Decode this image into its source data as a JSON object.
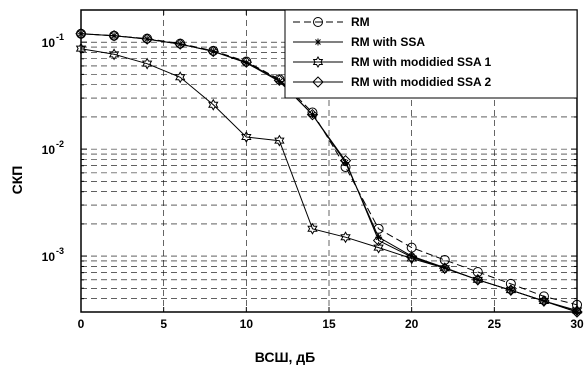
{
  "chart_data": {
    "type": "line",
    "xlabel": "ВСШ, дБ",
    "ylabel": "СКП",
    "xlim": [
      0,
      30
    ],
    "ylim": [
      0.0003,
      0.2
    ],
    "yscale": "log",
    "grid": true,
    "legend_position": "top-right",
    "x_ticks": [
      0,
      5,
      10,
      15,
      20,
      25,
      30
    ],
    "y_ticks": [
      {
        "value": 0.1,
        "base": "10",
        "exp": "-1"
      },
      {
        "value": 0.01,
        "base": "10",
        "exp": "-2"
      },
      {
        "value": 0.001,
        "base": "10",
        "exp": "-3"
      }
    ],
    "x": [
      0,
      2,
      4,
      6,
      8,
      10,
      12,
      14,
      16,
      18,
      20,
      22,
      24,
      26,
      28,
      30
    ],
    "series": [
      {
        "name": "RM",
        "marker": "circle",
        "dash": "dashed",
        "values": [
          0.12,
          0.115,
          0.108,
          0.097,
          0.083,
          0.066,
          0.045,
          0.022,
          0.0068,
          0.0018,
          0.0012,
          0.00092,
          0.00071,
          0.00055,
          0.00042,
          0.00035
        ]
      },
      {
        "name": "RM with SSA",
        "marker": "asterisk",
        "dash": "solid",
        "values": [
          0.12,
          0.115,
          0.107,
          0.096,
          0.082,
          0.064,
          0.043,
          0.021,
          0.0075,
          0.0015,
          0.001,
          0.00078,
          0.0006,
          0.00048,
          0.00038,
          0.0003
        ]
      },
      {
        "name": "RM with modidied SSA 1",
        "marker": "hexagram",
        "dash": "solid",
        "values": [
          0.087,
          0.077,
          0.063,
          0.047,
          0.026,
          0.013,
          0.012,
          0.0018,
          0.0015,
          0.0012,
          0.00095,
          0.00077,
          0.0006,
          0.00048,
          0.00038,
          0.00031
        ]
      },
      {
        "name": "RM with modidied SSA 2",
        "marker": "diamond",
        "dash": "solid",
        "values": [
          0.12,
          0.115,
          0.107,
          0.096,
          0.082,
          0.065,
          0.044,
          0.021,
          0.0078,
          0.0014,
          0.00098,
          0.00077,
          0.0006,
          0.00048,
          0.00038,
          0.0003
        ]
      }
    ]
  }
}
